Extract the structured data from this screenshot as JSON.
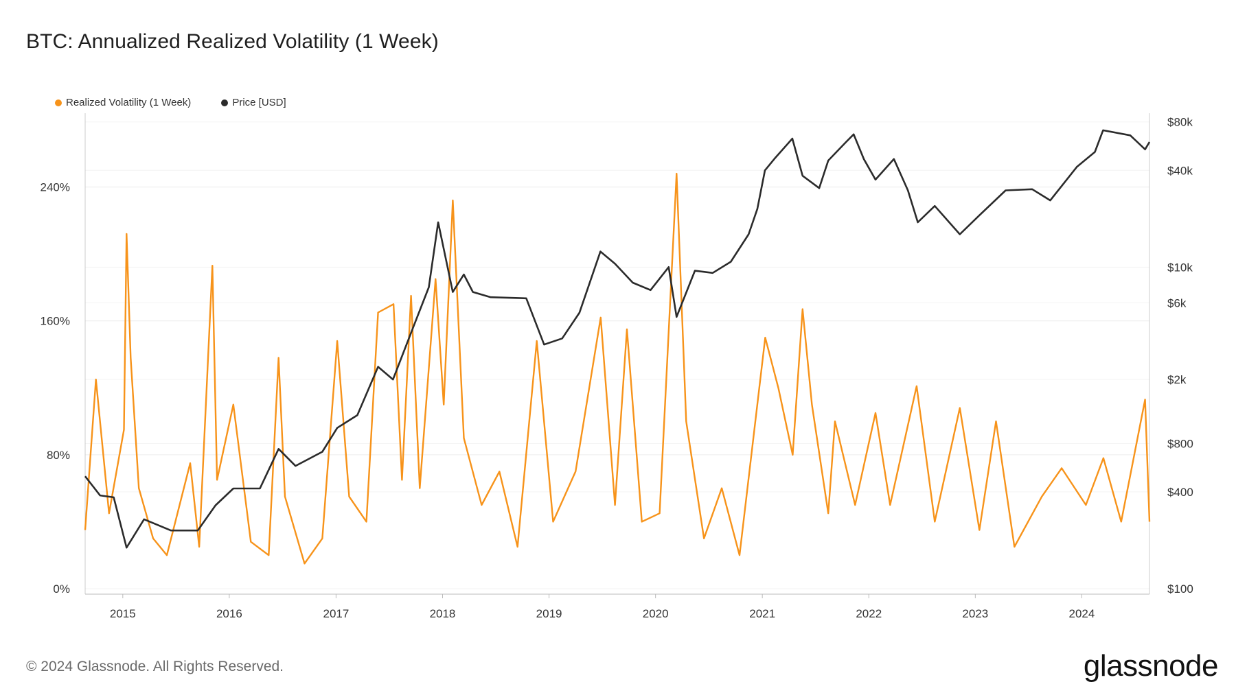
{
  "title": "BTC: Annualized Realized Volatility (1 Week)",
  "footer": {
    "copyright": "© 2024 Glassnode. All Rights Reserved.",
    "brand": "glassnode"
  },
  "colors": {
    "volatility": "#f7931a",
    "price": "#2b2b2b",
    "grid": "#ececec",
    "axis": "#cccccc"
  },
  "chart_data": {
    "type": "line",
    "title": "BTC: Annualized Realized Volatility (1 Week)",
    "grid": true,
    "legend_position": "top-left",
    "x_axis": {
      "type": "date",
      "range": [
        "2014-08-25",
        "2024-08-20"
      ],
      "tick_labels": [
        "2015",
        "2016",
        "2017",
        "2018",
        "2019",
        "2020",
        "2021",
        "2022",
        "2023",
        "2024"
      ]
    },
    "y_axis_left": {
      "unit": "%",
      "range": [
        0,
        280
      ],
      "tick_values": [
        0,
        80,
        160,
        240
      ],
      "tick_labels": [
        "0%",
        "80%",
        "160%",
        "240%"
      ]
    },
    "y_axis_right": {
      "scale": "log",
      "range": [
        100,
        100000
      ],
      "tick_values": [
        100,
        400,
        800,
        2000,
        6000,
        10000,
        40000,
        80000
      ],
      "tick_labels": [
        "$100",
        "$400",
        "$800",
        "$2k",
        "$6k",
        "$10k",
        "$40k",
        "$80k"
      ]
    },
    "series": [
      {
        "name": "Realized Volatility (1 Week)",
        "axis": "left",
        "color": "#f7931a",
        "points": [
          [
            "2014-08-25",
            35
          ],
          [
            "2014-10-01",
            125
          ],
          [
            "2014-11-15",
            45
          ],
          [
            "2015-01-05",
            95
          ],
          [
            "2015-01-14",
            212
          ],
          [
            "2015-01-28",
            138
          ],
          [
            "2015-02-25",
            60
          ],
          [
            "2015-04-15",
            30
          ],
          [
            "2015-06-01",
            20
          ],
          [
            "2015-08-20",
            75
          ],
          [
            "2015-09-20",
            25
          ],
          [
            "2015-11-04",
            193
          ],
          [
            "2015-11-20",
            65
          ],
          [
            "2016-01-15",
            110
          ],
          [
            "2016-03-15",
            28
          ],
          [
            "2016-05-15",
            20
          ],
          [
            "2016-06-18",
            138
          ],
          [
            "2016-07-10",
            55
          ],
          [
            "2016-09-15",
            15
          ],
          [
            "2016-11-15",
            30
          ],
          [
            "2017-01-05",
            148
          ],
          [
            "2017-02-15",
            55
          ],
          [
            "2017-04-15",
            40
          ],
          [
            "2017-05-25",
            165
          ],
          [
            "2017-07-17",
            170
          ],
          [
            "2017-08-15",
            65
          ],
          [
            "2017-09-15",
            175
          ],
          [
            "2017-10-15",
            60
          ],
          [
            "2017-12-08",
            185
          ],
          [
            "2018-01-05",
            110
          ],
          [
            "2018-02-05",
            232
          ],
          [
            "2018-03-15",
            90
          ],
          [
            "2018-05-15",
            50
          ],
          [
            "2018-07-15",
            70
          ],
          [
            "2018-09-15",
            25
          ],
          [
            "2018-11-20",
            148
          ],
          [
            "2019-01-15",
            40
          ],
          [
            "2019-04-02",
            70
          ],
          [
            "2019-06-27",
            162
          ],
          [
            "2019-08-15",
            50
          ],
          [
            "2019-09-25",
            155
          ],
          [
            "2019-11-15",
            40
          ],
          [
            "2020-01-15",
            45
          ],
          [
            "2020-03-13",
            248
          ],
          [
            "2020-04-15",
            100
          ],
          [
            "2020-06-15",
            30
          ],
          [
            "2020-08-15",
            60
          ],
          [
            "2020-10-15",
            20
          ],
          [
            "2021-01-11",
            150
          ],
          [
            "2021-02-25",
            120
          ],
          [
            "2021-04-15",
            80
          ],
          [
            "2021-05-19",
            167
          ],
          [
            "2021-06-20",
            110
          ],
          [
            "2021-08-15",
            45
          ],
          [
            "2021-09-07",
            100
          ],
          [
            "2021-11-15",
            50
          ],
          [
            "2022-01-24",
            105
          ],
          [
            "2022-03-15",
            50
          ],
          [
            "2022-06-14",
            121
          ],
          [
            "2022-08-15",
            40
          ],
          [
            "2022-11-09",
            108
          ],
          [
            "2023-01-15",
            35
          ],
          [
            "2023-03-13",
            100
          ],
          [
            "2023-05-15",
            25
          ],
          [
            "2023-08-17",
            55
          ],
          [
            "2023-10-24",
            72
          ],
          [
            "2024-01-15",
            50
          ],
          [
            "2024-03-15",
            78
          ],
          [
            "2024-05-15",
            40
          ],
          [
            "2024-08-05",
            113
          ],
          [
            "2024-08-20",
            40
          ]
        ]
      },
      {
        "name": "Price [USD]",
        "axis": "right",
        "color": "#2b2b2b",
        "points": [
          [
            "2014-08-25",
            500
          ],
          [
            "2014-10-15",
            380
          ],
          [
            "2014-12-01",
            370
          ],
          [
            "2015-01-14",
            180
          ],
          [
            "2015-03-15",
            270
          ],
          [
            "2015-06-15",
            230
          ],
          [
            "2015-09-15",
            230
          ],
          [
            "2015-11-15",
            330
          ],
          [
            "2016-01-15",
            420
          ],
          [
            "2016-04-15",
            420
          ],
          [
            "2016-06-18",
            740
          ],
          [
            "2016-08-15",
            580
          ],
          [
            "2016-11-15",
            710
          ],
          [
            "2017-01-05",
            1000
          ],
          [
            "2017-03-15",
            1200
          ],
          [
            "2017-05-25",
            2400
          ],
          [
            "2017-07-15",
            2000
          ],
          [
            "2017-09-15",
            3900
          ],
          [
            "2017-11-15",
            7500
          ],
          [
            "2017-12-17",
            19000
          ],
          [
            "2018-02-05",
            7000
          ],
          [
            "2018-03-15",
            9000
          ],
          [
            "2018-04-15",
            7000
          ],
          [
            "2018-06-15",
            6500
          ],
          [
            "2018-10-15",
            6400
          ],
          [
            "2018-12-15",
            3300
          ],
          [
            "2019-02-15",
            3600
          ],
          [
            "2019-04-15",
            5200
          ],
          [
            "2019-06-26",
            12500
          ],
          [
            "2019-08-15",
            10500
          ],
          [
            "2019-10-15",
            8000
          ],
          [
            "2019-12-15",
            7200
          ],
          [
            "2020-02-15",
            10000
          ],
          [
            "2020-03-13",
            4900
          ],
          [
            "2020-05-15",
            9500
          ],
          [
            "2020-07-15",
            9200
          ],
          [
            "2020-09-15",
            10800
          ],
          [
            "2020-11-15",
            16000
          ],
          [
            "2020-12-15",
            23000
          ],
          [
            "2021-01-10",
            40000
          ],
          [
            "2021-02-15",
            48000
          ],
          [
            "2021-04-14",
            63000
          ],
          [
            "2021-05-19",
            37000
          ],
          [
            "2021-07-15",
            31000
          ],
          [
            "2021-08-15",
            46000
          ],
          [
            "2021-10-15",
            60000
          ],
          [
            "2021-11-10",
            67000
          ],
          [
            "2021-12-15",
            47000
          ],
          [
            "2022-01-24",
            35000
          ],
          [
            "2022-03-28",
            47000
          ],
          [
            "2022-05-15",
            30000
          ],
          [
            "2022-06-18",
            19000
          ],
          [
            "2022-08-15",
            24000
          ],
          [
            "2022-11-09",
            16000
          ],
          [
            "2023-01-15",
            21000
          ],
          [
            "2023-04-15",
            30000
          ],
          [
            "2023-07-15",
            30500
          ],
          [
            "2023-09-15",
            26000
          ],
          [
            "2023-12-15",
            42000
          ],
          [
            "2024-02-15",
            52000
          ],
          [
            "2024-03-14",
            71000
          ],
          [
            "2024-06-15",
            66000
          ],
          [
            "2024-08-05",
            54000
          ],
          [
            "2024-08-20",
            60000
          ]
        ]
      }
    ]
  }
}
